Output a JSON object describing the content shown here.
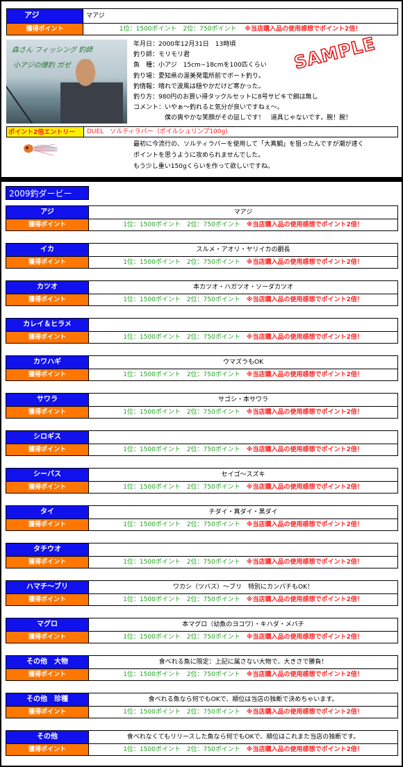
{
  "sample": {
    "fish": "アジ",
    "name": "マアジ",
    "points_label": "獲得ポイント",
    "points_text": "1位：1500ポイント　2位：750ポイント",
    "points_bonus": "※当店購入品の使用感想でポイント2倍！",
    "photo_caption1": "森さん フィッシング 釣師",
    "photo_caption2": "小アジの爆釣 ガゼ",
    "stamp": "SAMPLE",
    "info": [
      "年月日：2000年12月31日　13時頃",
      "釣り師：モリモリ君",
      "魚　種：小アジ　15cm~18cmを100匹くらい",
      "釣り場：愛知県の渥美発電所前でボート釣り。",
      "釣情報：晴れで波風は穏やかだけど寒かった。",
      "釣り方：980円のお買い得タックルセットに8号サビキで餌は無し",
      "コメント：いやぁ～釣れると気分が良いですねぇ～。",
      "　　　　　僕の爽やかな笑顔がその証しです！　道具じゃないです，腕！腕！"
    ],
    "entry_label": "ポイント2倍エントリー",
    "entry_product": "DUEL　ソルティラバー（ボイルシュリンプ100g)",
    "comment": [
      "最初に今流行の、ソルティラバーを使用して「大真鯛」を狙ったんですが潮が速く",
      "ポイントを思うように攻められませんでした。",
      "もう少し重い150gくらいを作って欲しいですね。"
    ]
  },
  "derby": {
    "title": "2009釣ダービー",
    "points_label": "獲得ポイント",
    "points_text": "1位：1500ポイント　2位：750ポイント",
    "points_bonus": "※当店購入品の使用感想でポイント2倍！",
    "rows": [
      {
        "fish": "アジ",
        "target": "マアジ"
      },
      {
        "fish": "イカ",
        "target": "スルメ・アオリ・ヤリイカの胴長"
      },
      {
        "fish": "カツオ",
        "target": "本カツオ・ハガツオ・ソーダカツオ"
      },
      {
        "fish": "カレイ＆ヒラメ",
        "target": ""
      },
      {
        "fish": "カワハギ",
        "target": "ウマズラもOK"
      },
      {
        "fish": "サワラ",
        "target": "サゴシ・本サワラ"
      },
      {
        "fish": "シロギス",
        "target": ""
      },
      {
        "fish": "シーバス",
        "target": "セイゴ～スズキ"
      },
      {
        "fish": "タイ",
        "target": "チダイ・真ダイ・黒ダイ"
      },
      {
        "fish": "タチウオ",
        "target": ""
      },
      {
        "fish": "ハマチ～ブリ",
        "target": "ワカシ（ツバス）～ブリ　特別にカンパチもOK！"
      },
      {
        "fish": "マグロ",
        "target": "本マグロ（幼魚のヨコワ）・キハダ・メバチ"
      },
      {
        "fish": "その他　大物",
        "target": "食べれる魚に限定：上記に属さない大物で、大きさで勝負！"
      },
      {
        "fish": "その他　珍種",
        "target": "食べれる魚なら何でもOKで、順位は当店の独断で決めちゃいます。"
      },
      {
        "fish": "その他",
        "target": "食べれなくてもリリースした魚なら何でもOKで、順位はこれまた当店の独断です。"
      }
    ]
  }
}
